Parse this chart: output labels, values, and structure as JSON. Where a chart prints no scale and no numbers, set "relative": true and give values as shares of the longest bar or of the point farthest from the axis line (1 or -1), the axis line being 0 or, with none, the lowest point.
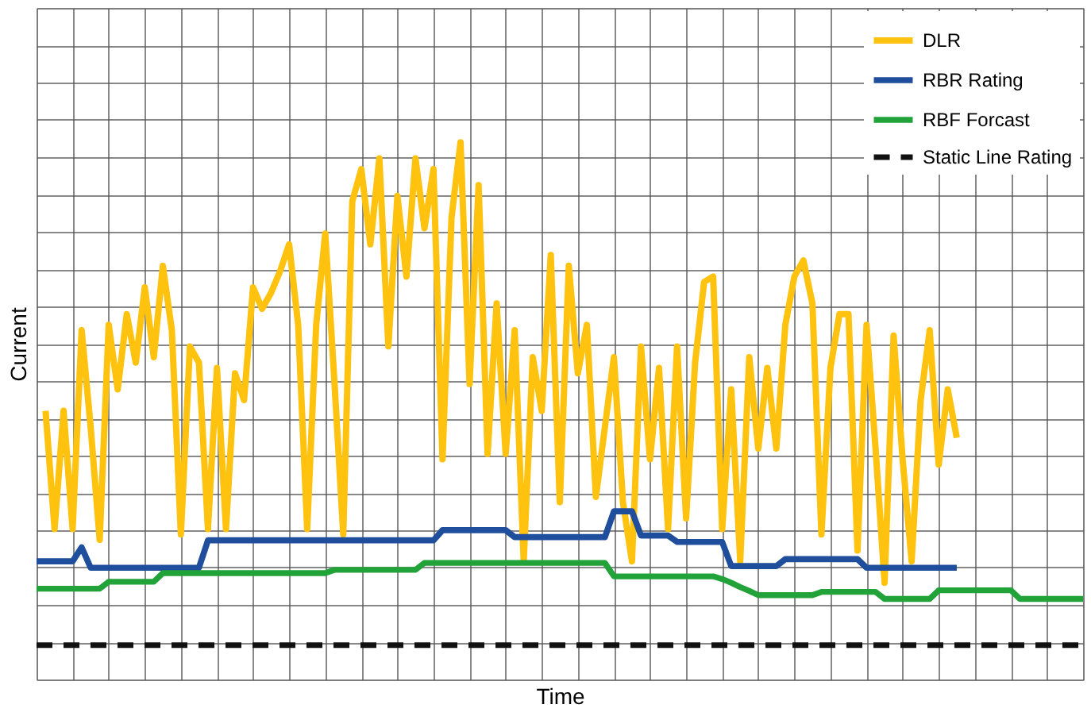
{
  "chart_data": {
    "type": "line",
    "xlabel": "Time",
    "ylabel": "Current",
    "relative": true,
    "categories": [
      null,
      null,
      null,
      null,
      null,
      null,
      null,
      null,
      null,
      null,
      null,
      null,
      null,
      null,
      null,
      null,
      null,
      null,
      null,
      null,
      null,
      null,
      null,
      null,
      null,
      null,
      null,
      null,
      null,
      null,
      null,
      null,
      null,
      null,
      null,
      null,
      null,
      null,
      null,
      null,
      null,
      null,
      null,
      null,
      null,
      null,
      null,
      null,
      null,
      null,
      null,
      null,
      null,
      null,
      null,
      null,
      null,
      null,
      null,
      null,
      null,
      null,
      null,
      null,
      null,
      null,
      null,
      null,
      null,
      null,
      null,
      null,
      null,
      null,
      null,
      null,
      null,
      null,
      null,
      null,
      null,
      null,
      null,
      null,
      null,
      null,
      null,
      null,
      null,
      null,
      null,
      null,
      null,
      null,
      null,
      null,
      null,
      null,
      null,
      null,
      null,
      null,
      null,
      null,
      null,
      null,
      null,
      null,
      null,
      null,
      null,
      null,
      null,
      null,
      null,
      null,
      null
    ],
    "grid": true,
    "legend": "top right",
    "tick_labels": false,
    "marker": "none",
    "series": [
      {
        "name": "DLR",
        "color": "#ffc20e",
        "line_style": "solid",
        "values": [
          null,
          0.5,
          0.28,
          0.5,
          0.28,
          0.65,
          0.47,
          0.26,
          0.66,
          0.54,
          0.68,
          0.59,
          0.73,
          0.6,
          0.77,
          0.65,
          0.27,
          0.62,
          0.59,
          0.28,
          0.58,
          0.28,
          0.57,
          0.52,
          0.73,
          0.69,
          0.72,
          0.76,
          0.81,
          0.66,
          0.28,
          0.66,
          0.83,
          0.56,
          0.27,
          0.89,
          0.95,
          0.81,
          0.97,
          0.62,
          0.9,
          0.75,
          0.97,
          0.84,
          0.95,
          0.41,
          0.86,
          1,
          0.55,
          0.92,
          0.42,
          0.7,
          0.42,
          0.65,
          0.22,
          0.6,
          0.5,
          0.79,
          0.33,
          0.77,
          0.57,
          0.66,
          0.34,
          0.47,
          0.6,
          0.33,
          0.22,
          0.62,
          0.41,
          0.58,
          0.28,
          0.62,
          0.3,
          0.59,
          0.74,
          0.75,
          0.28,
          0.54,
          0.22,
          0.6,
          0.43,
          0.58,
          0.43,
          0.66,
          0.75,
          0.78,
          0.7,
          0.27,
          0.58,
          0.68,
          0.68,
          0.24,
          0.66,
          0.43,
          0.18,
          0.64,
          0.41,
          0.22,
          0.52,
          0.65,
          0.4,
          0.54,
          0.45,
          null,
          null,
          null,
          null,
          null,
          null,
          null,
          null,
          null,
          null,
          null,
          null,
          null,
          null
        ]
      },
      {
        "name": "RBR Rating",
        "color": "#1f4e9c",
        "line_style": "solid",
        "values": [
          0.22,
          0.22,
          0.22,
          0.22,
          0.22,
          0.246,
          0.208,
          0.208,
          0.208,
          0.208,
          0.208,
          0.208,
          0.208,
          0.208,
          0.208,
          0.208,
          0.208,
          0.208,
          0.208,
          0.259,
          0.259,
          0.259,
          0.259,
          0.259,
          0.259,
          0.259,
          0.259,
          0.259,
          0.259,
          0.259,
          0.259,
          0.259,
          0.259,
          0.259,
          0.259,
          0.259,
          0.259,
          0.259,
          0.259,
          0.259,
          0.259,
          0.259,
          0.259,
          0.259,
          0.259,
          0.278,
          0.278,
          0.278,
          0.278,
          0.278,
          0.278,
          0.278,
          0.278,
          0.265,
          0.265,
          0.265,
          0.265,
          0.265,
          0.265,
          0.265,
          0.265,
          0.265,
          0.265,
          0.265,
          0.313,
          0.313,
          0.313,
          0.268,
          0.268,
          0.268,
          0.268,
          0.256,
          0.256,
          0.256,
          0.256,
          0.256,
          0.256,
          0.211,
          0.211,
          0.211,
          0.211,
          0.211,
          0.211,
          0.224,
          0.224,
          0.224,
          0.224,
          0.224,
          0.224,
          0.224,
          0.224,
          0.224,
          0.208,
          0.208,
          0.208,
          0.208,
          0.208,
          0.208,
          0.208,
          0.208,
          0.208,
          0.208,
          0.208,
          null,
          null,
          null,
          null,
          null,
          null,
          null,
          null,
          null,
          null,
          null,
          null,
          null,
          null
        ]
      },
      {
        "name": "RBF Forcast",
        "color": "#22a33a",
        "line_style": "solid",
        "values": [
          0.169,
          0.169,
          0.169,
          0.169,
          0.169,
          0.169,
          0.169,
          0.169,
          0.182,
          0.182,
          0.182,
          0.182,
          0.182,
          0.182,
          0.198,
          0.198,
          0.198,
          0.198,
          0.198,
          0.198,
          0.198,
          0.198,
          0.198,
          0.198,
          0.198,
          0.198,
          0.198,
          0.198,
          0.198,
          0.198,
          0.198,
          0.198,
          0.198,
          0.204,
          0.204,
          0.204,
          0.204,
          0.204,
          0.204,
          0.204,
          0.204,
          0.204,
          0.204,
          0.217,
          0.217,
          0.217,
          0.217,
          0.217,
          0.217,
          0.217,
          0.217,
          0.217,
          0.217,
          0.217,
          0.217,
          0.217,
          0.217,
          0.217,
          0.217,
          0.217,
          0.217,
          0.217,
          0.217,
          0.217,
          0.192,
          0.192,
          0.192,
          0.192,
          0.192,
          0.192,
          0.192,
          0.192,
          0.192,
          0.192,
          0.192,
          0.192,
          0.187,
          0.18,
          0.172,
          0.165,
          0.157,
          0.157,
          0.157,
          0.157,
          0.157,
          0.157,
          0.157,
          0.163,
          0.163,
          0.163,
          0.163,
          0.163,
          0.163,
          0.163,
          0.15,
          0.15,
          0.15,
          0.15,
          0.15,
          0.15,
          0.166,
          0.166,
          0.166,
          0.166,
          0.166,
          0.166,
          0.166,
          0.166,
          0.166,
          0.15,
          0.15,
          0.15,
          0.15,
          0.15,
          0.15,
          0.15,
          0.15
        ]
      },
      {
        "name": "Static Line Rating",
        "color": "#111111",
        "line_style": "dashed",
        "values": [
          0.064,
          0.064,
          0.064,
          0.064,
          0.064,
          0.064,
          0.064,
          0.064,
          0.064,
          0.064,
          0.064,
          0.064,
          0.064,
          0.064,
          0.064,
          0.064,
          0.064,
          0.064,
          0.064,
          0.064,
          0.064,
          0.064,
          0.064,
          0.064,
          0.064,
          0.064,
          0.064,
          0.064,
          0.064,
          0.064,
          0.064,
          0.064,
          0.064,
          0.064,
          0.064,
          0.064,
          0.064,
          0.064,
          0.064,
          0.064,
          0.064,
          0.064,
          0.064,
          0.064,
          0.064,
          0.064,
          0.064,
          0.064,
          0.064,
          0.064,
          0.064,
          0.064,
          0.064,
          0.064,
          0.064,
          0.064,
          0.064,
          0.064,
          0.064,
          0.064,
          0.064,
          0.064,
          0.064,
          0.064,
          0.064,
          0.064,
          0.064,
          0.064,
          0.064,
          0.064,
          0.064,
          0.064,
          0.064,
          0.064,
          0.064,
          0.064,
          0.064,
          0.064,
          0.064,
          0.064,
          0.064,
          0.064,
          0.064,
          0.064,
          0.064,
          0.064,
          0.064,
          0.064,
          0.064,
          0.064,
          0.064,
          0.064,
          0.064,
          0.064,
          0.064,
          0.064,
          0.064,
          0.064,
          0.064,
          0.064,
          0.064,
          0.064,
          0.064,
          0.064,
          0.064,
          0.064,
          0.064,
          0.064,
          0.064,
          0.064,
          0.064,
          0.064,
          0.064,
          0.064,
          0.064,
          0.064,
          0.064
        ]
      }
    ]
  }
}
